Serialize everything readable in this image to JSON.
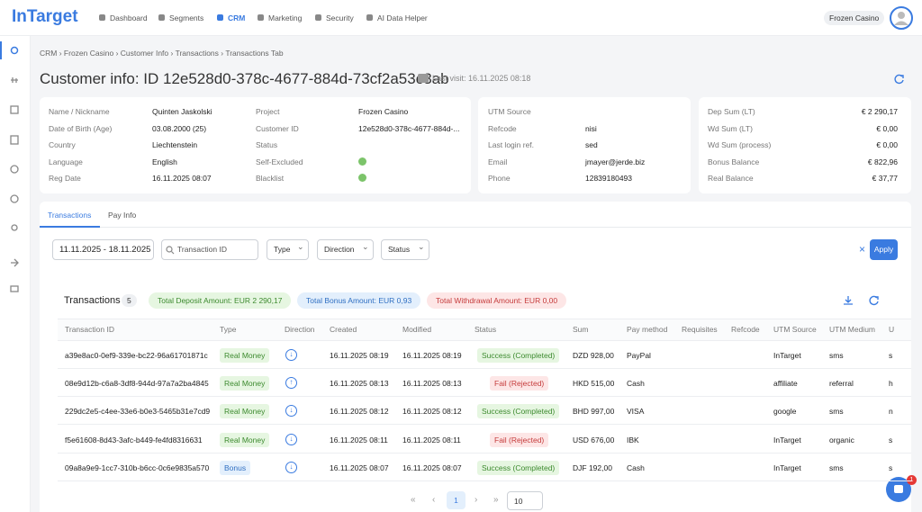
{
  "nav": {
    "logo": "InTarget",
    "items": [
      "Dashboard",
      "Segments",
      "CRM",
      "Marketing",
      "Security",
      "AI Data Helper"
    ],
    "active": 2,
    "project": "Frozen Casino"
  },
  "breadcrumb": [
    "CRM",
    "Frozen Casino",
    "Customer Info",
    "Transactions",
    "Transactions Tab"
  ],
  "header": {
    "title": "Customer info: ID 12e528d0-378c-4677-884d-73cf2a53c3ab",
    "last_visit": "Last visit: 16.11.2025 08:18"
  },
  "cards": [
    {
      "rows": [
        {
          "label": "Name / Nickname",
          "value": "Quinten Jaskolski"
        },
        {
          "label": "Date of Birth (Age)",
          "value": "03.08.2000 (25)"
        },
        {
          "label": "Country",
          "value": "Liechtenstein"
        },
        {
          "label": "Language",
          "value": "English"
        },
        {
          "label": "Reg Date",
          "value": "16.11.2025 08:07"
        }
      ]
    },
    {
      "rows": [
        {
          "label": "Project",
          "value": "Frozen Casino"
        },
        {
          "label": "Customer ID",
          "value": "12e528d0-378c-4677-884d-..."
        },
        {
          "label": "Status"
        },
        {
          "label": "Self-Excluded",
          "icon": true
        },
        {
          "label": "Blacklist",
          "icon": true
        }
      ]
    },
    {
      "rows": [
        {
          "label": "UTM Source"
        },
        {
          "label": "Refcode",
          "value": "nisi"
        },
        {
          "label": "Last login ref.",
          "value": "sed"
        },
        {
          "label": "Email",
          "value": "jmayer@jerde.biz"
        },
        {
          "label": "Phone",
          "value": "12839180493"
        }
      ]
    },
    {
      "rows": [
        {
          "label": "Dep Sum (LT)",
          "value": "€ 2 290,17"
        },
        {
          "label": "Wd Sum (LT)",
          "value": "€ 0,00"
        },
        {
          "label": "Wd Sum (process)",
          "value": "€ 0,00"
        },
        {
          "label": "Bonus Balance",
          "value": "€ 822,96"
        },
        {
          "label": "Real Balance",
          "value": "€ 37,77"
        }
      ]
    }
  ],
  "tabs": [
    "Transactions",
    "Pay Info"
  ],
  "filters": {
    "date": "11.11.2025 - 18.11.2025",
    "search_placeholder": "Transaction ID",
    "selects": [
      "Type",
      "Direction",
      "Status"
    ],
    "apply": "Apply"
  },
  "transactions": {
    "title": "Transactions",
    "count": 5,
    "totals": [
      {
        "text": "Total Deposit Amount: EUR 2 290,17",
        "tone": "green"
      },
      {
        "text": "Total Bonus Amount: EUR 0,93",
        "tone": "blue"
      },
      {
        "text": "Total Withdrawal Amount: EUR 0,00",
        "tone": "red"
      }
    ],
    "columns": [
      "Transaction ID",
      "Type",
      "Direction",
      "Created",
      "Modified",
      "Status",
      "Sum",
      "Pay method",
      "Requisites",
      "Refcode",
      "UTM Source",
      "UTM Medium",
      "U"
    ],
    "rows": [
      {
        "cells": [
          "a39e8ac0-0ef9-339e-bc22-96a61701871c",
          "Real Money",
          null,
          "16.11.2025 08:19",
          "16.11.2025 08:19",
          "Success (Completed)",
          "DZD 928,00",
          "PayPal",
          null,
          null,
          "InTarget",
          "sms",
          "s"
        ],
        "type_tone": "green",
        "direction": "in",
        "status_tone": "success"
      },
      {
        "cells": [
          "08e9d12b-c6a8-3df8-944d-97a7a2ba4845",
          "Real Money",
          null,
          "16.11.2025 08:13",
          "16.11.2025 08:13",
          "Fail (Rejected)",
          "HKD 515,00",
          "Cash",
          null,
          null,
          "affiliate",
          "referral",
          "h"
        ],
        "type_tone": "green",
        "direction": "out",
        "status_tone": "fail"
      },
      {
        "cells": [
          "229dc2e5-c4ee-33e6-b0e3-5465b31e7cd9",
          "Real Money",
          null,
          "16.11.2025 08:12",
          "16.11.2025 08:12",
          "Success (Completed)",
          "BHD 997,00",
          "VISA",
          null,
          null,
          "google",
          "sms",
          "n"
        ],
        "type_tone": "green",
        "direction": "in",
        "status_tone": "success"
      },
      {
        "cells": [
          "f5e61608-8d43-3afc-b449-fe4fd8316631",
          "Real Money",
          null,
          "16.11.2025 08:11",
          "16.11.2025 08:11",
          "Fail (Rejected)",
          "USD 676,00",
          "IBK",
          null,
          null,
          "InTarget",
          "organic",
          "s"
        ],
        "type_tone": "green",
        "direction": "in",
        "status_tone": "fail"
      },
      {
        "cells": [
          "09a8a9e9-1cc7-310b-b6cc-0c6e9835a570",
          "Bonus",
          null,
          "16.11.2025 08:07",
          "16.11.2025 08:07",
          "Success (Completed)",
          "DJF 192,00",
          "Cash",
          null,
          null,
          "InTarget",
          "sms",
          "s"
        ],
        "type_tone": "blue",
        "direction": "in",
        "status_tone": "success"
      }
    ]
  },
  "pagination": {
    "current": 1,
    "page_size": 10
  },
  "chat": {
    "badge": 1
  }
}
